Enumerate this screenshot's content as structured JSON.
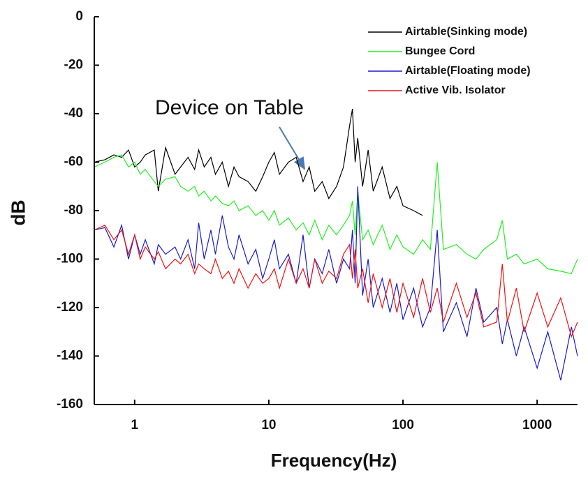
{
  "chart_data": {
    "type": "line",
    "xscale": "log",
    "xlabel": "Frequency(Hz)",
    "ylabel": "dB",
    "annotation": "Device on Table",
    "xlim": [
      0.5,
      2000
    ],
    "ylim": [
      -160,
      0
    ],
    "xticks": [
      1,
      10,
      100,
      1000
    ],
    "yticks": [
      0,
      -20,
      -40,
      -60,
      -80,
      -100,
      -120,
      -140,
      -160
    ],
    "legend": "upper right",
    "x": [
      0.5,
      0.6,
      0.7,
      0.8,
      0.9,
      1,
      1.1,
      1.2,
      1.4,
      1.5,
      1.7,
      2,
      2.2,
      2.5,
      2.8,
      3,
      3.3,
      3.7,
      4,
      4.5,
      5,
      5.5,
      6,
      7,
      8,
      9,
      10,
      11,
      12,
      14,
      16,
      18,
      20,
      22,
      25,
      28,
      32,
      36,
      40,
      42,
      44,
      46,
      50,
      55,
      60,
      70,
      80,
      90,
      100,
      120,
      140,
      160,
      180,
      200,
      250,
      300,
      350,
      400,
      500,
      550,
      600,
      700,
      800,
      1000,
      1200,
      1500,
      1800,
      2000
    ],
    "series": [
      {
        "name": "Airtable(Sinking mode)",
        "color": "#000000",
        "values": [
          -60,
          -59,
          -57,
          -58,
          -55,
          -62,
          -60,
          -57,
          -55,
          -72,
          -54,
          -65,
          -62,
          -58,
          -63,
          -55,
          -62,
          -58,
          -65,
          -60,
          -70,
          -62,
          -66,
          -68,
          -72,
          -66,
          -60,
          -56,
          -65,
          -60,
          -58,
          -68,
          -62,
          -72,
          -68,
          -75,
          -70,
          -62,
          -45,
          -38,
          -60,
          -50,
          -70,
          -55,
          -72,
          -62,
          -75,
          -70,
          -78,
          -80,
          -82,
          null,
          null,
          null,
          null,
          null,
          null,
          null,
          null,
          null,
          null,
          null,
          null,
          null,
          null,
          null,
          null,
          null
        ]
      },
      {
        "name": "Bungee Cord",
        "color": "#22ee22",
        "values": [
          -62,
          -60,
          -58,
          -57,
          -62,
          -60,
          -65,
          -63,
          -68,
          -70,
          -67,
          -66,
          -70,
          -72,
          -70,
          -74,
          -72,
          -76,
          -74,
          -77,
          -78,
          -76,
          -80,
          -78,
          -82,
          -80,
          -84,
          -80,
          -86,
          -83,
          -88,
          -85,
          -90,
          -84,
          -92,
          -86,
          -90,
          -86,
          -82,
          -76,
          -90,
          -72,
          -92,
          -88,
          -94,
          -86,
          -96,
          -90,
          -95,
          -98,
          -92,
          -96,
          -60,
          -96,
          -94,
          -98,
          -100,
          -96,
          -92,
          -84,
          -100,
          -98,
          -102,
          -100,
          -104,
          -105,
          -106,
          -100
        ]
      },
      {
        "name": "Airtable(Floating mode)",
        "color": "#1a1acc",
        "values": [
          -88,
          -87,
          -95,
          -86,
          -100,
          -90,
          -98,
          -92,
          -102,
          -94,
          -98,
          -95,
          -100,
          -92,
          -104,
          -85,
          -100,
          -88,
          -98,
          -82,
          -95,
          -100,
          -90,
          -102,
          -96,
          -108,
          -100,
          -92,
          -104,
          -98,
          -110,
          -90,
          -112,
          -100,
          -106,
          -96,
          -110,
          -100,
          -104,
          -88,
          -110,
          -70,
          -115,
          -100,
          -120,
          -108,
          -122,
          -110,
          -125,
          -112,
          -128,
          -120,
          -88,
          -130,
          -118,
          -132,
          -112,
          -126,
          -120,
          -135,
          -125,
          -140,
          -128,
          -145,
          -130,
          -150,
          -128,
          -140
        ]
      },
      {
        "name": "Active Vib. Isolator",
        "color": "#ee1111",
        "values": [
          -88,
          -86,
          -92,
          -88,
          -98,
          -90,
          -100,
          -95,
          -100,
          -97,
          -104,
          -100,
          -102,
          -98,
          -106,
          -102,
          -104,
          -106,
          -100,
          -108,
          -105,
          -110,
          -104,
          -112,
          -106,
          -110,
          -108,
          -104,
          -112,
          -100,
          -110,
          -104,
          -112,
          -100,
          -110,
          -105,
          -108,
          -98,
          -94,
          -108,
          -96,
          -112,
          -104,
          -118,
          -106,
          -120,
          -108,
          -122,
          -110,
          -124,
          -108,
          -122,
          -112,
          -126,
          -110,
          -124,
          -114,
          -128,
          -126,
          -102,
          -126,
          -112,
          -130,
          -114,
          -128,
          -116,
          -132,
          -126
        ]
      }
    ]
  }
}
